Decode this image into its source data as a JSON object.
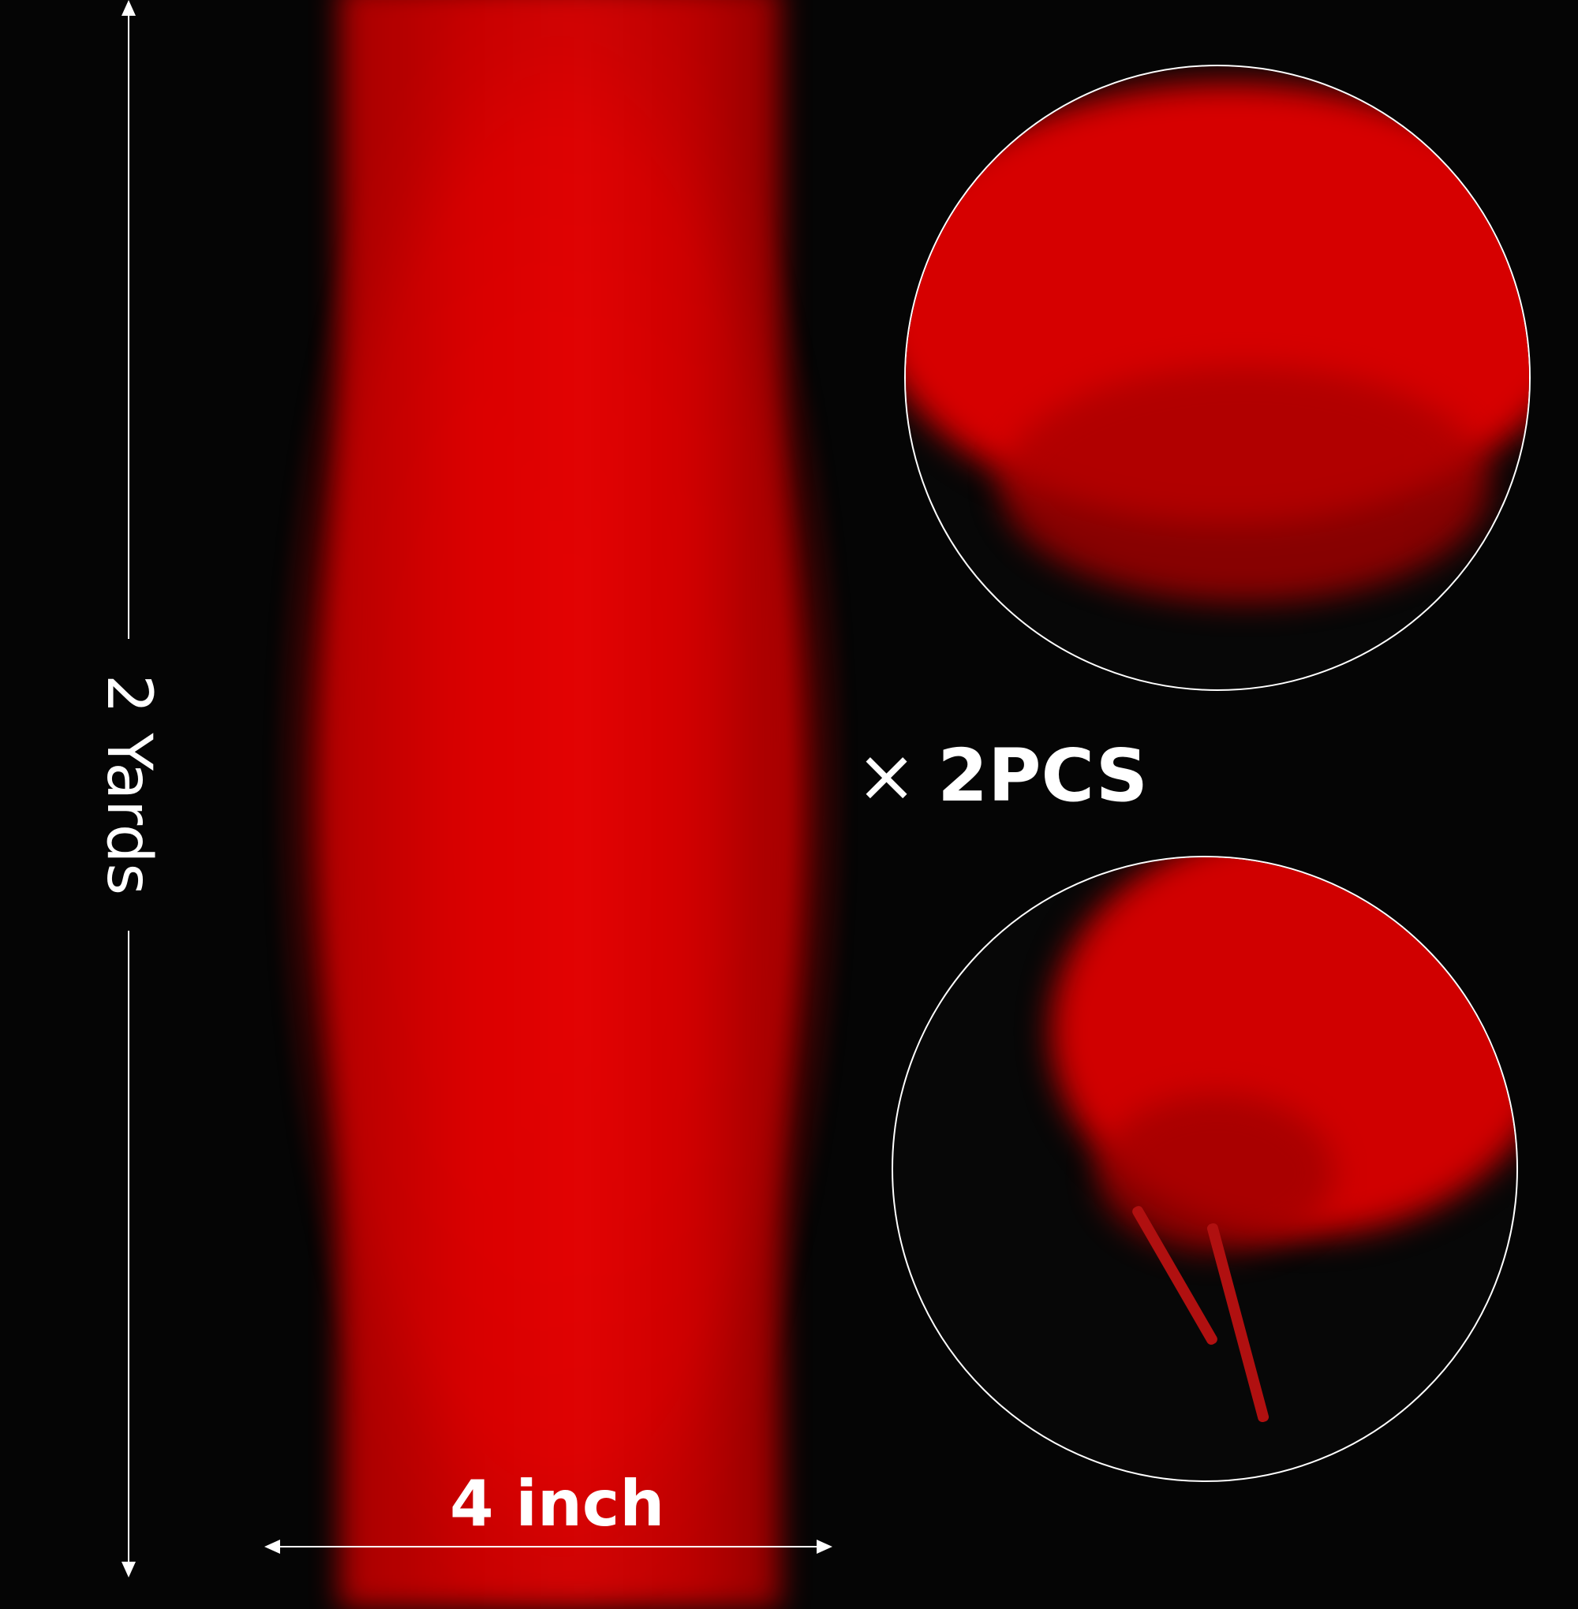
{
  "length_label": "2 Yards",
  "width_label": "4 inch",
  "quantity": {
    "symbol": "×",
    "label": "2PCS"
  },
  "colors": {
    "background": "#050505",
    "feather": "#d80000",
    "text": "#ffffff"
  }
}
